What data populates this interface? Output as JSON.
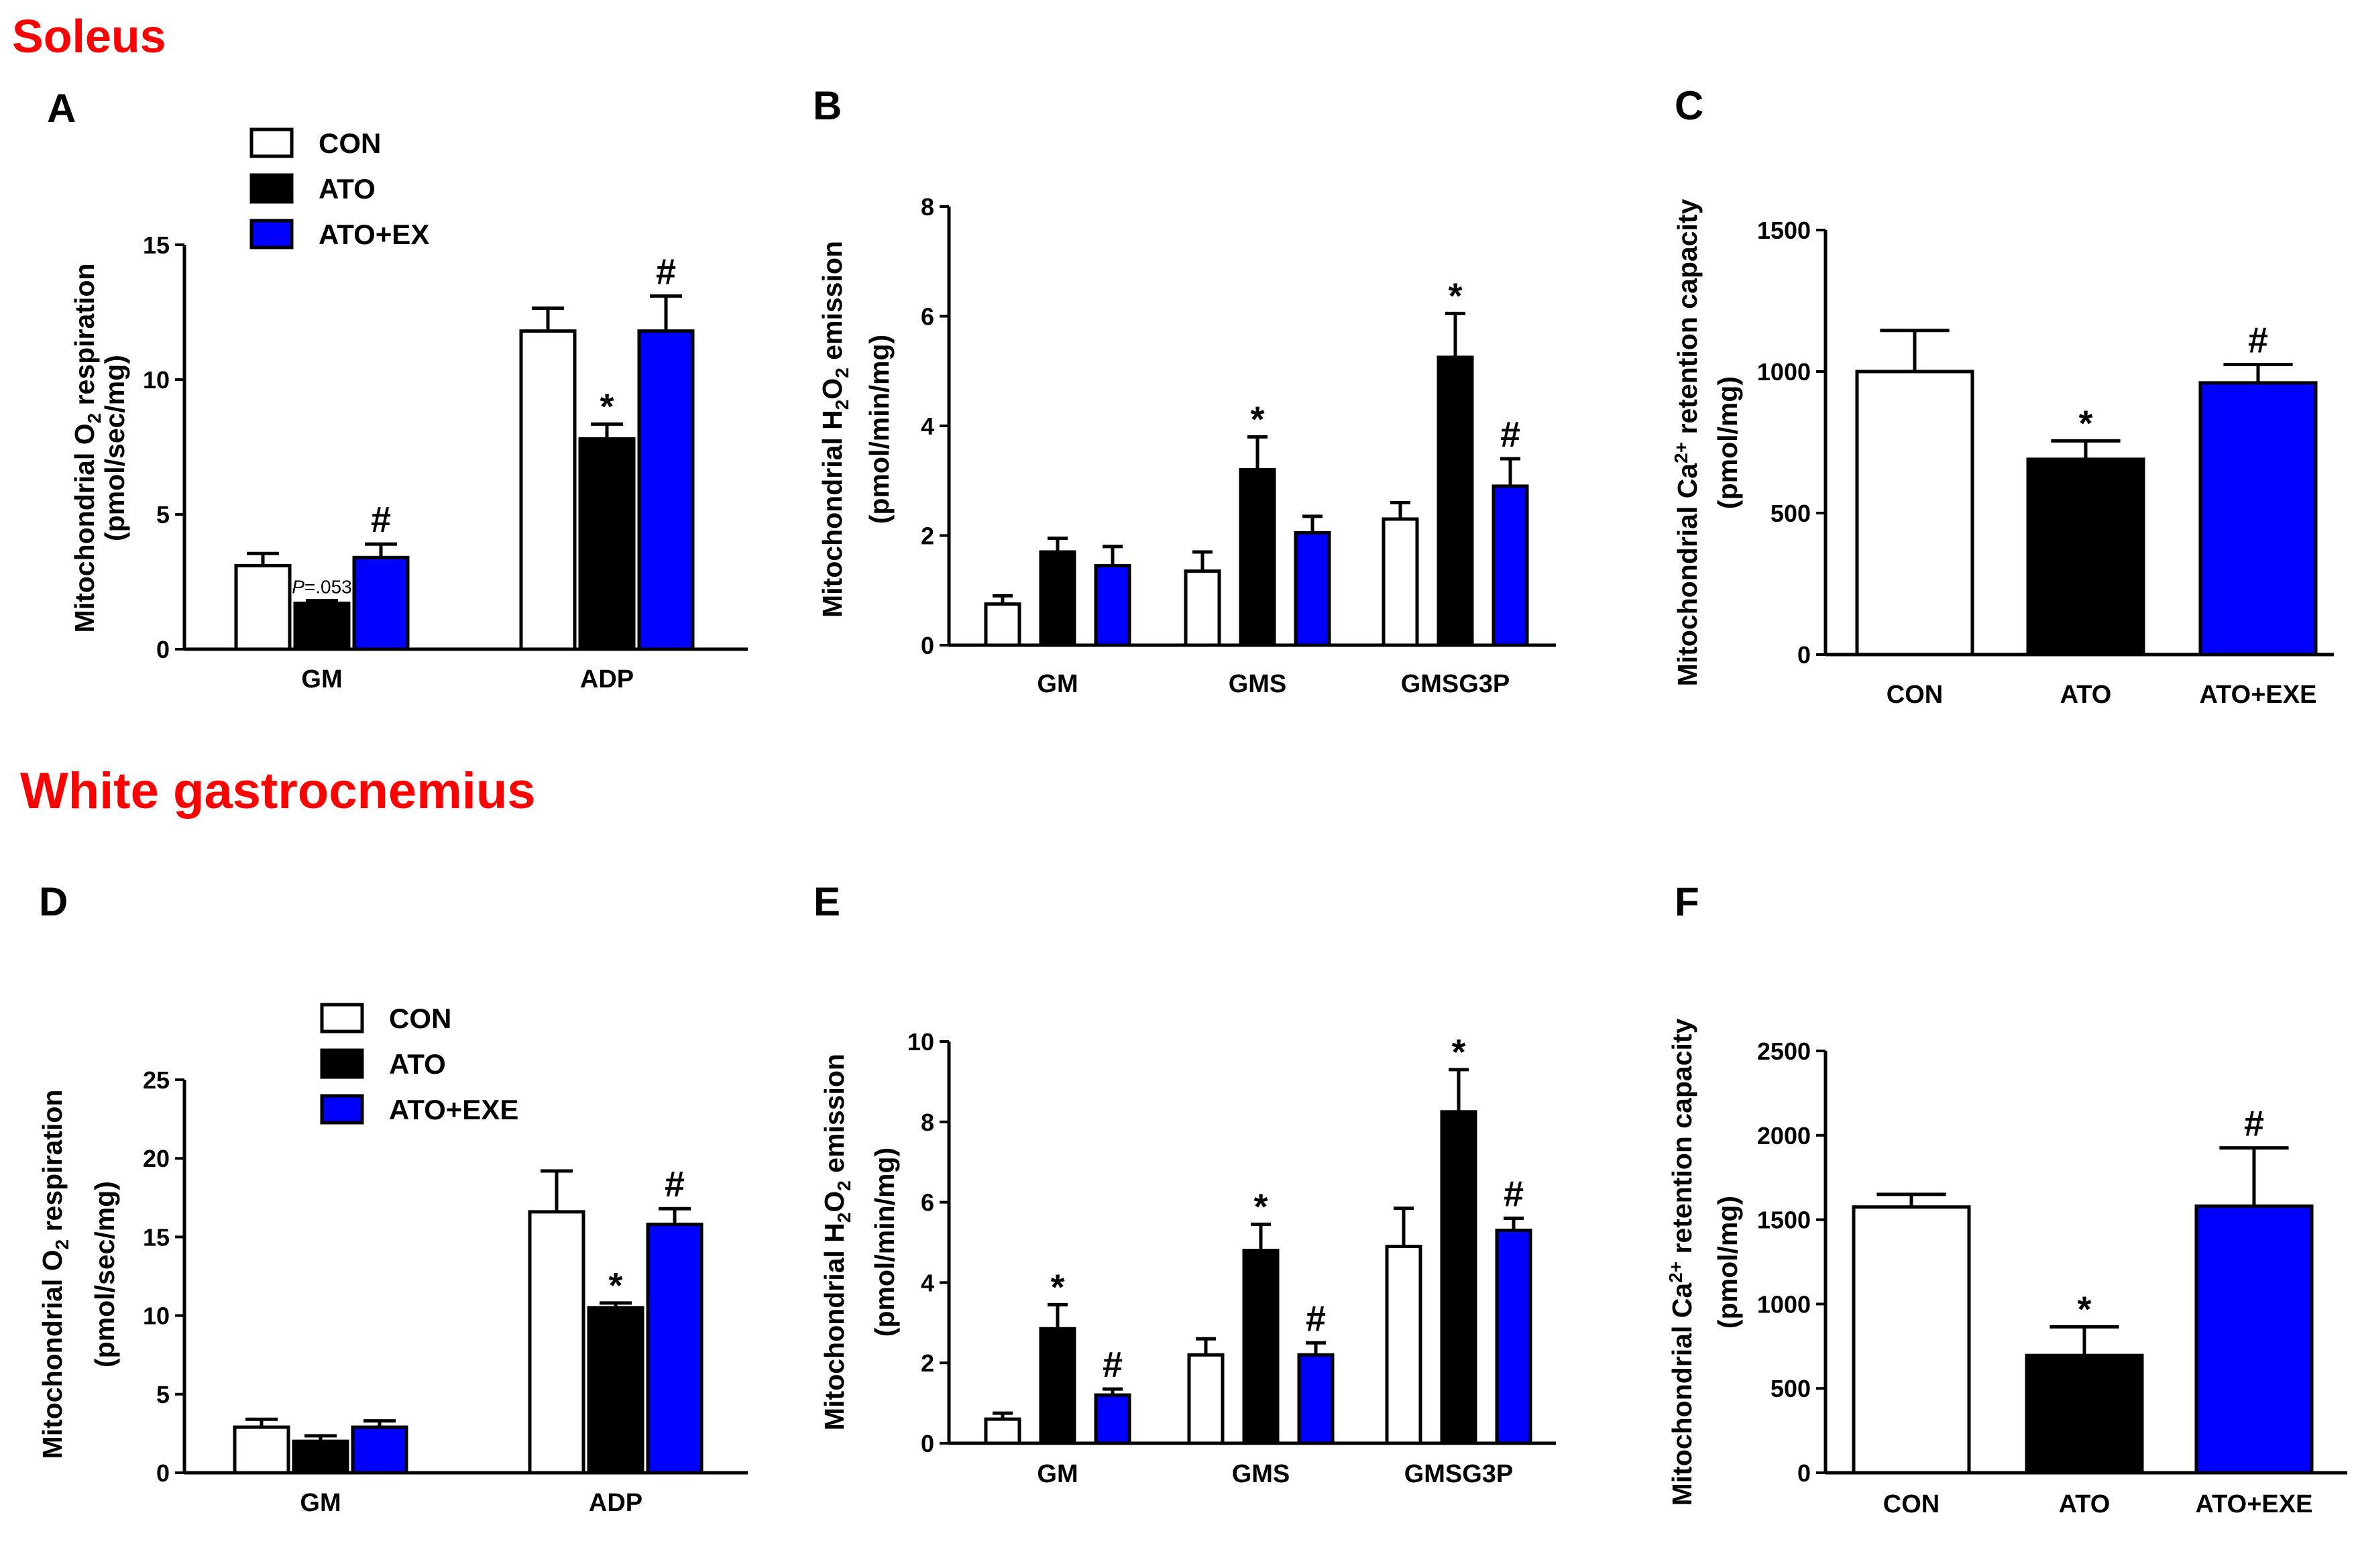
{
  "sections": [
    {
      "title": "Soleus",
      "color": "#ff0000"
    },
    {
      "title": "White gastrocnemius",
      "color": "#ff0000"
    }
  ],
  "colors": {
    "CON": "#ffffff",
    "ATO": "#000000",
    "ATO+EX": "#0000ff",
    "stroke": "#000000"
  },
  "chart_data": [
    {
      "panel": "A",
      "type": "bar",
      "section": "Soleus",
      "ylabel_parts": [
        "Mitochondrial O",
        "2",
        " respiration"
      ],
      "yunit": "(pmol/sec/mg)",
      "ylim": [
        0,
        15
      ],
      "yticks": [
        0,
        5,
        10,
        15
      ],
      "ytick_labels": [
        "0",
        "5",
        "10",
        "15"
      ],
      "categories": [
        "GM",
        "ADP"
      ],
      "legend": [
        "CON",
        "ATO",
        "ATO+EX"
      ],
      "series": [
        {
          "name": "CON",
          "values": [
            3.1,
            11.8
          ],
          "errors": [
            0.45,
            0.85
          ]
        },
        {
          "name": "ATO",
          "values": [
            1.7,
            7.8
          ],
          "errors": [
            0.1,
            0.55
          ]
        },
        {
          "name": "ATO+EX",
          "values": [
            3.4,
            11.8
          ],
          "errors": [
            0.5,
            1.3
          ]
        }
      ],
      "marks": [
        {
          "cat": 0,
          "series": 1,
          "text": "P=.053"
        },
        {
          "cat": 0,
          "series": 2,
          "text": "#"
        },
        {
          "cat": 1,
          "series": 1,
          "text": "*"
        },
        {
          "cat": 1,
          "series": 2,
          "text": "#"
        }
      ]
    },
    {
      "panel": "B",
      "type": "bar",
      "section": "Soleus",
      "ylabel_parts": [
        "Mitochondrial H",
        "2",
        "O",
        "2",
        " emission"
      ],
      "yunit": "(pmol/min/mg)",
      "ylim": [
        0,
        8
      ],
      "yticks": [
        0,
        2,
        4,
        6,
        8
      ],
      "ytick_labels": [
        "0",
        "2",
        "4",
        "6",
        "8"
      ],
      "categories": [
        "GM",
        "GMS",
        "GMSG3P"
      ],
      "series": [
        {
          "name": "CON",
          "values": [
            0.75,
            1.35,
            2.3
          ],
          "errors": [
            0.15,
            0.35,
            0.3
          ]
        },
        {
          "name": "ATO",
          "values": [
            1.7,
            3.2,
            5.25
          ],
          "errors": [
            0.25,
            0.6,
            0.8
          ]
        },
        {
          "name": "ATO+EX",
          "values": [
            1.45,
            2.05,
            2.9
          ],
          "errors": [
            0.35,
            0.3,
            0.5
          ]
        }
      ],
      "marks": [
        {
          "cat": 1,
          "series": 1,
          "text": "*"
        },
        {
          "cat": 2,
          "series": 1,
          "text": "*"
        },
        {
          "cat": 2,
          "series": 2,
          "text": "#"
        }
      ]
    },
    {
      "panel": "C",
      "type": "bar",
      "section": "Soleus",
      "ylabel_parts": [
        "Mitochondrial Ca",
        "2+",
        " retention capacity"
      ],
      "yunit": "(pmol/mg)",
      "ylim": [
        0,
        1500
      ],
      "yticks": [
        0,
        500,
        1000,
        1500
      ],
      "ytick_labels": [
        "0",
        "500",
        "1000",
        "1500"
      ],
      "categories": [
        "CON",
        "ATO",
        "ATO+EXE"
      ],
      "series": [
        {
          "name": "value",
          "values": [
            1000,
            690,
            960
          ],
          "errors": [
            145,
            65,
            65
          ]
        }
      ],
      "marks": [
        {
          "cat": 1,
          "series": 0,
          "text": "*"
        },
        {
          "cat": 2,
          "series": 0,
          "text": "#"
        }
      ]
    },
    {
      "panel": "D",
      "type": "bar",
      "section": "White gastrocnemius",
      "ylabel_parts": [
        "Mitochondrial O",
        "2",
        " respiration"
      ],
      "yunit": "(pmol/sec/mg)",
      "ylim": [
        0,
        25
      ],
      "yticks": [
        0,
        5,
        10,
        15,
        20,
        25
      ],
      "ytick_labels": [
        "0",
        "5",
        "10",
        "15",
        "20",
        "25"
      ],
      "categories": [
        "GM",
        "ADP"
      ],
      "legend": [
        "CON",
        "ATO",
        "ATO+EXE"
      ],
      "series": [
        {
          "name": "CON",
          "values": [
            2.9,
            16.6
          ],
          "errors": [
            0.5,
            2.6
          ]
        },
        {
          "name": "ATO",
          "values": [
            2.0,
            10.5
          ],
          "errors": [
            0.35,
            0.3
          ]
        },
        {
          "name": "ATO+EXE",
          "values": [
            2.9,
            15.8
          ],
          "errors": [
            0.4,
            1.0
          ]
        }
      ],
      "marks": [
        {
          "cat": 1,
          "series": 1,
          "text": "*"
        },
        {
          "cat": 1,
          "series": 2,
          "text": "#"
        }
      ]
    },
    {
      "panel": "E",
      "type": "bar",
      "section": "White gastrocnemius",
      "ylabel_parts": [
        "Mitochondrial H",
        "2",
        "O",
        "2",
        " emission"
      ],
      "yunit": "(pmol/min/mg)",
      "ylim": [
        0,
        10
      ],
      "yticks": [
        0,
        2,
        4,
        6,
        8,
        10
      ],
      "ytick_labels": [
        "0",
        "2",
        "4",
        "6",
        "8",
        "10"
      ],
      "categories": [
        "GM",
        "GMS",
        "GMSG3P"
      ],
      "series": [
        {
          "name": "CON",
          "values": [
            0.6,
            2.2,
            4.9
          ],
          "errors": [
            0.15,
            0.4,
            0.95
          ]
        },
        {
          "name": "ATO",
          "values": [
            2.85,
            4.8,
            8.25
          ],
          "errors": [
            0.6,
            0.65,
            1.05
          ]
        },
        {
          "name": "ATO+EXE",
          "values": [
            1.2,
            2.2,
            5.3
          ],
          "errors": [
            0.15,
            0.3,
            0.3
          ]
        }
      ],
      "marks": [
        {
          "cat": 0,
          "series": 1,
          "text": "*"
        },
        {
          "cat": 0,
          "series": 2,
          "text": "#"
        },
        {
          "cat": 1,
          "series": 1,
          "text": "*"
        },
        {
          "cat": 1,
          "series": 2,
          "text": "#"
        },
        {
          "cat": 2,
          "series": 1,
          "text": "*"
        },
        {
          "cat": 2,
          "series": 2,
          "text": "#"
        }
      ]
    },
    {
      "panel": "F",
      "type": "bar",
      "section": "White gastrocnemius",
      "ylabel_parts": [
        "Mitochondrial Ca",
        "2+",
        " retention capacity"
      ],
      "yunit": "(pmol/mg)",
      "ylim": [
        0,
        2500
      ],
      "yticks": [
        0,
        500,
        1000,
        1500,
        2000,
        2500
      ],
      "ytick_labels": [
        "0",
        "500",
        "1000",
        "1500",
        "2000",
        "2500"
      ],
      "categories": [
        "CON",
        "ATO",
        "ATO+EXE"
      ],
      "series": [
        {
          "name": "value",
          "values": [
            1575,
            695,
            1580
          ],
          "errors": [
            75,
            170,
            345
          ]
        }
      ],
      "marks": [
        {
          "cat": 1,
          "series": 0,
          "text": "*"
        },
        {
          "cat": 2,
          "series": 0,
          "text": "#"
        }
      ]
    }
  ]
}
